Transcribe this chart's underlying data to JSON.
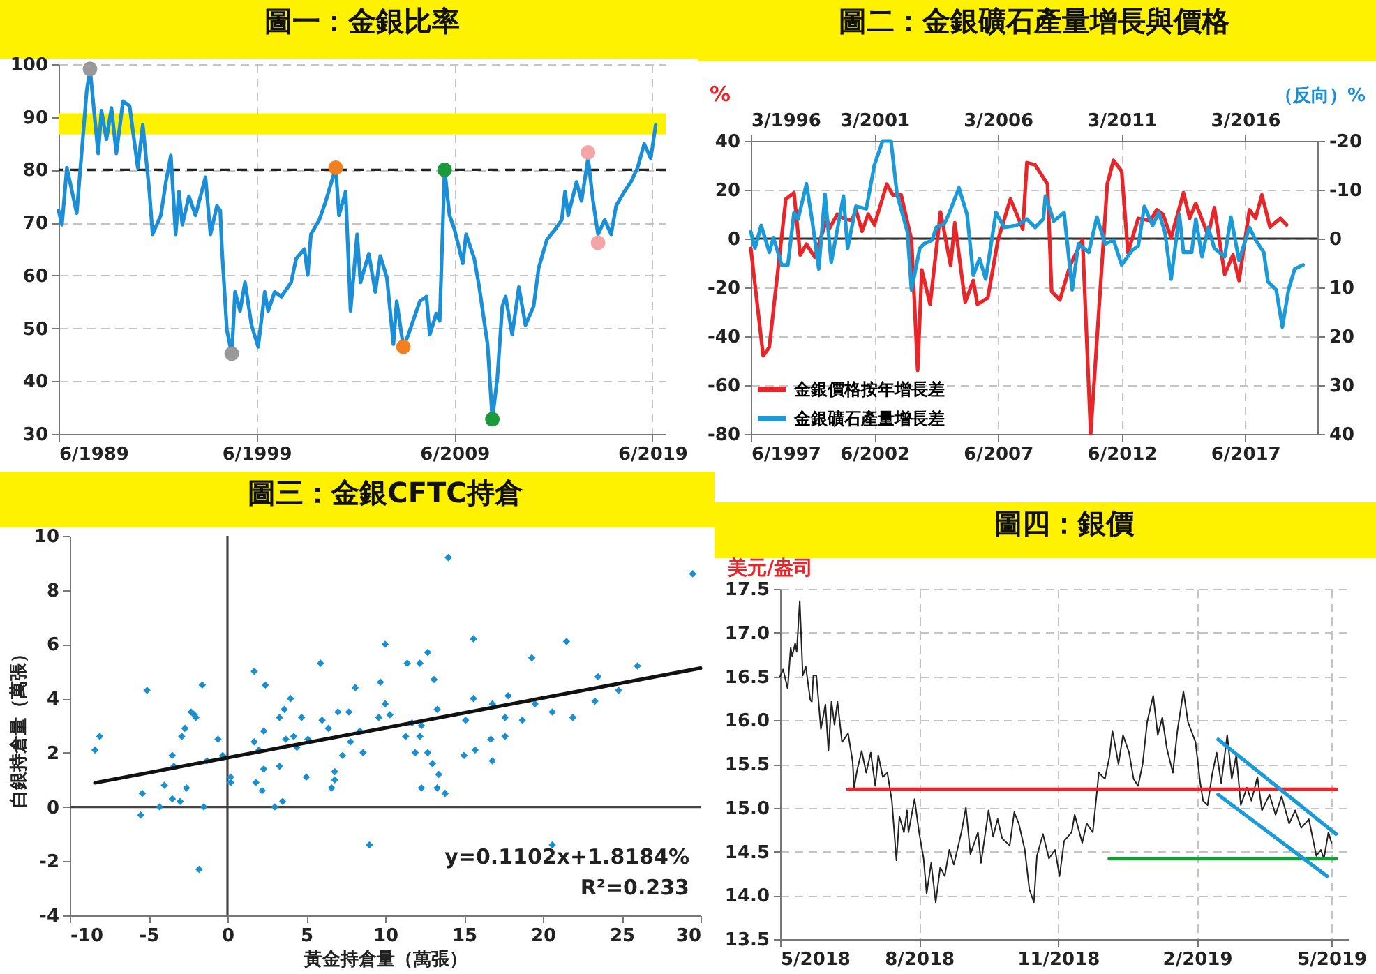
{
  "chart_data": [
    {
      "type": "line",
      "title": "圖一：金銀比率",
      "xlim": [
        "1989-06",
        "2020-02"
      ],
      "xticks": [
        {
          "value": "1989-06",
          "label": "6/1989"
        },
        {
          "value": "1999-06",
          "label": "6/1999"
        },
        {
          "value": "2009-06",
          "label": "6/2009"
        },
        {
          "value": "2019-06",
          "label": "6/2019"
        }
      ],
      "ylim": [
        30,
        100
      ],
      "yticks": [
        30,
        40,
        50,
        60,
        70,
        80,
        90,
        100
      ],
      "grid": true,
      "bands": [
        {
          "axis": "y",
          "from": 86.7,
          "to": 90.7,
          "color": "#fff200"
        }
      ],
      "ref_lines": [
        {
          "axis": "y",
          "value": 80,
          "color": "#222222",
          "line_style": "dashed"
        }
      ],
      "series": [
        {
          "color": "#1a8fd8",
          "x": [
            "1989-06",
            "1989-08",
            "1989-11",
            "1990-05",
            "1990-11",
            "1991-01",
            "1991-06",
            "1991-08",
            "1991-11",
            "1992-02",
            "1992-05",
            "1992-09",
            "1993-01",
            "1993-06",
            "1993-09",
            "1994-01",
            "1994-03",
            "1994-08",
            "1994-11",
            "1995-02",
            "1995-05",
            "1995-07",
            "1995-09",
            "1996-01",
            "1996-05",
            "1996-11",
            "1997-02",
            "1997-06",
            "1997-08",
            "1997-09",
            "1997-12",
            "1998-03",
            "1998-05",
            "1998-08",
            "1998-11",
            "1999-03",
            "1999-07",
            "1999-11",
            "2000-01",
            "2000-05",
            "2000-09",
            "2001-03",
            "2001-06",
            "2001-11",
            "2002-01",
            "2002-03",
            "2002-08",
            "2002-12",
            "2003-06",
            "2003-08",
            "2003-12",
            "2004-03",
            "2004-07",
            "2004-09",
            "2005-02",
            "2005-06",
            "2005-09",
            "2006-01",
            "2006-05",
            "2006-07",
            "2006-11",
            "2007-02",
            "2007-06",
            "2007-09",
            "2008-01",
            "2008-03",
            "2008-07",
            "2008-09",
            "2008-12",
            "2009-03",
            "2009-06",
            "2009-11",
            "2010-01",
            "2010-06",
            "2010-09",
            "2011-02",
            "2011-05",
            "2011-08",
            "2011-11",
            "2012-01",
            "2012-05",
            "2012-09",
            "2013-01",
            "2013-06",
            "2013-09",
            "2014-02",
            "2014-07",
            "2014-11",
            "2015-01",
            "2015-03",
            "2015-08",
            "2015-11",
            "2016-03",
            "2016-06",
            "2016-09",
            "2017-01",
            "2017-05",
            "2017-08",
            "2018-01",
            "2018-05",
            "2018-09",
            "2019-01",
            "2019-05",
            "2019-08"
          ],
          "values": [
            72.3,
            69.6,
            80.4,
            71.8,
            94.9,
            99.1,
            83.1,
            91.2,
            85.8,
            91.7,
            83.1,
            93,
            92.1,
            80.4,
            88.5,
            75.9,
            67.8,
            71.4,
            77.7,
            82.7,
            67.8,
            75.9,
            69.6,
            75,
            71.4,
            78.6,
            67.8,
            73.2,
            72.3,
            65,
            49.7,
            45.2,
            56.9,
            53.3,
            58.7,
            50.6,
            46.5,
            56.9,
            53.3,
            56.9,
            56,
            58.7,
            63.2,
            65,
            60.1,
            67.8,
            70.5,
            74.1,
            80.4,
            71.4,
            75.9,
            53.3,
            67.8,
            58.7,
            64.1,
            56.9,
            63.7,
            59.6,
            47,
            55.1,
            46.5,
            48.8,
            52.4,
            55.1,
            56,
            48.8,
            52.8,
            51.4,
            80,
            71.4,
            68.7,
            62.3,
            67.8,
            63.2,
            57.8,
            47,
            32.8,
            40.6,
            54.2,
            56,
            48.8,
            57.8,
            50.6,
            54.2,
            61.4,
            66.8,
            68.7,
            70.5,
            75.9,
            71.4,
            77.7,
            74.1,
            82.2,
            74.1,
            67.8,
            70.5,
            67.8,
            73.2,
            75.9,
            77.7,
            80.4,
            84.9,
            82.2,
            88.5
          ]
        },
        {
          "type": "scatter",
          "color": "#999999",
          "x": [
            "1991-01",
            "1998-03"
          ],
          "values": [
            99.1,
            45.2
          ]
        },
        {
          "type": "scatter",
          "color": "#f08020",
          "x": [
            "2003-06",
            "2006-11"
          ],
          "values": [
            80.4,
            46.5
          ]
        },
        {
          "type": "scatter",
          "color": "#1a9a3a",
          "x": [
            "2008-12",
            "2011-05"
          ],
          "values": [
            80,
            32.8
          ]
        },
        {
          "type": "scatter",
          "color": "#f4a6a6",
          "x": [
            "2016-03",
            "2016-09"
          ],
          "values": [
            83.3,
            66.2
          ]
        }
      ]
    },
    {
      "type": "line",
      "title": "圖二：金銀礦石產量增長與價格",
      "ylabel": "%",
      "y2label": "（反向）%",
      "xlim": [
        "1997-06",
        "2020-05"
      ],
      "xticks": [
        {
          "value": "1997-06",
          "label": "6/1997"
        },
        {
          "value": "2002-06",
          "label": "6/2002"
        },
        {
          "value": "2007-06",
          "label": "6/2007"
        },
        {
          "value": "2012-06",
          "label": "6/2012"
        },
        {
          "value": "2017-06",
          "label": "6/2017"
        }
      ],
      "x2lim": [
        "1996-03",
        "2019-02"
      ],
      "x2ticks": [
        {
          "value": "1996-03",
          "label": "3/1996"
        },
        {
          "value": "2001-03",
          "label": "3/2001"
        },
        {
          "value": "2006-03",
          "label": "3/2006"
        },
        {
          "value": "2011-03",
          "label": "3/2011"
        },
        {
          "value": "2016-03",
          "label": "3/2016"
        }
      ],
      "ylim": [
        -80,
        40
      ],
      "yticks": [
        -80,
        -60,
        -40,
        -20,
        0,
        20,
        40
      ],
      "y2lim": [
        40,
        -20
      ],
      "y2ticks": [
        -20,
        -10,
        0,
        10,
        20,
        30,
        40
      ],
      "grid": true,
      "legend": "bottom left",
      "ref_lines": [
        {
          "axis": "y",
          "value": 0,
          "color": "#333333"
        }
      ],
      "series": [
        {
          "name": "金銀價格按年增長差",
          "color": "#e8262a",
          "x": [
            "1997-06",
            "1997-12",
            "1998-03",
            "1998-11",
            "1999-03",
            "1999-06",
            "1999-09",
            "2000-01",
            "2000-07",
            "2000-08",
            "2000-12",
            "2001-03",
            "2001-07",
            "2001-09",
            "2001-12",
            "2002-03",
            "2002-06",
            "2002-12",
            "2003-03",
            "2003-07",
            "2003-12",
            "2004-03",
            "2004-05",
            "2004-09",
            "2005-02",
            "2005-07",
            "2005-09",
            "2006-02",
            "2006-06",
            "2006-08",
            "2007-01",
            "2007-06",
            "2007-12",
            "2008-06",
            "2008-08",
            "2008-12",
            "2009-06",
            "2009-08",
            "2009-12",
            "2010-05",
            "2010-11",
            "2011-03",
            "2011-11",
            "2012-02",
            "2012-06",
            "2012-09",
            "2013-02",
            "2013-08",
            "2013-11",
            "2014-02",
            "2014-06",
            "2014-12",
            "2015-03",
            "2015-06",
            "2015-12",
            "2016-03",
            "2016-08",
            "2016-12",
            "2017-03",
            "2017-08",
            "2017-11",
            "2018-02",
            "2018-06",
            "2018-11",
            "2019-02"
          ],
          "values": [
            -4,
            -48,
            -44.5,
            16.2,
            18.8,
            -6.7,
            -2.3,
            -7.6,
            8.3,
            3.9,
            10,
            8.3,
            7.4,
            11.8,
            3,
            10,
            5.6,
            22.3,
            17.9,
            17.9,
            -0.5,
            -54,
            -12.8,
            -26.9,
            10.9,
            -11,
            6.5,
            -26,
            -17.2,
            -26.9,
            -24.3,
            -0.5,
            16.2,
            3.9,
            31.1,
            30.2,
            22.3,
            -21.6,
            -25.1,
            -11,
            -0.5,
            -80,
            22.3,
            32,
            27.6,
            -5.8,
            8.3,
            7.4,
            11.8,
            10,
            0.4,
            18.8,
            8.3,
            14.4,
            1.2,
            12.7,
            -14.6,
            -6.7,
            -17.2,
            11.8,
            8.3,
            17.9,
            4.7,
            8.3,
            5.6
          ]
        },
        {
          "name": "金銀礦石產量增長差",
          "color": "#1a9ad8",
          "axis": "y2",
          "x": [
            "1997-06",
            "1997-08",
            "1997-11",
            "1998-03",
            "1998-05",
            "1998-09",
            "1998-12",
            "1999-03",
            "1999-05",
            "1999-09",
            "1999-12",
            "2000-03",
            "2000-06",
            "2000-09",
            "2001-03",
            "2001-05",
            "2001-09",
            "2002-02",
            "2002-06",
            "2002-10",
            "2003-02",
            "2003-05",
            "2003-10",
            "2003-12",
            "2004-04",
            "2004-06",
            "2004-10",
            "2004-12",
            "2005-04",
            "2005-06",
            "2005-11",
            "2006-03",
            "2006-06",
            "2006-09",
            "2006-12",
            "2007-05",
            "2007-09",
            "2008-03",
            "2008-08",
            "2008-12",
            "2009-04",
            "2009-05",
            "2009-09",
            "2010-02",
            "2010-06",
            "2010-09",
            "2011-02",
            "2011-06",
            "2011-10",
            "2012-02",
            "2012-06",
            "2012-11",
            "2013-02",
            "2013-05",
            "2013-09",
            "2013-12",
            "2014-03",
            "2014-06",
            "2014-10",
            "2014-12",
            "2015-04",
            "2015-06",
            "2015-09",
            "2015-12",
            "2016-03",
            "2016-08",
            "2016-11",
            "2017-03",
            "2017-08",
            "2017-11",
            "2018-03",
            "2018-05",
            "2018-09",
            "2018-12",
            "2019-03",
            "2019-06",
            "2019-10"
          ],
          "values": [
            -1.4,
            2,
            -2.7,
            2.8,
            -0.2,
            5.4,
            5.4,
            -5.3,
            -4,
            -11.2,
            -3.1,
            6.2,
            -9.1,
            4.9,
            -8.7,
            2,
            -6.6,
            -6.1,
            -15.1,
            -20,
            -20,
            -9.1,
            -1.4,
            10.5,
            2,
            1.1,
            0.3,
            -2.3,
            -3.1,
            -4.9,
            -10.4,
            -4.9,
            7.5,
            4.1,
            8.3,
            -5.3,
            -2.3,
            -2.7,
            -4,
            -2.3,
            -4,
            -8.7,
            -3.6,
            -5.3,
            10.5,
            1.1,
            2.8,
            -4.4,
            1.1,
            0.3,
            5.4,
            2.4,
            1.5,
            -6.6,
            -2.7,
            -5.3,
            -1.4,
            8.3,
            -4.9,
            2.8,
            2.8,
            -4,
            3.7,
            -2.3,
            2,
            3.7,
            -4.4,
            4.5,
            -2.3,
            0.3,
            2.8,
            8.8,
            10.5,
            18.1,
            10.5,
            6.2,
            5.4
          ]
        }
      ]
    },
    {
      "type": "scatter",
      "title": "圖三：金銀CFTC持倉",
      "xlabel": "黃金持倉量（萬張）",
      "ylabel": "白銀持倉量（萬張）",
      "xlim": [
        -10,
        30
      ],
      "xticks": [
        -10,
        -5,
        0,
        5,
        10,
        15,
        20,
        25,
        30
      ],
      "ylim": [
        -4,
        10
      ],
      "yticks": [
        -4,
        -2,
        0,
        2,
        4,
        6,
        8,
        10
      ],
      "ref_lines": [
        {
          "axis": "x",
          "value": 0,
          "color": "#444444"
        },
        {
          "axis": "y",
          "value": 0,
          "color": "#444444"
        }
      ],
      "annotations": [
        "y=0.1102x+1.8184%",
        "R²=0.233"
      ],
      "series": [
        {
          "color": "#1a8fd0",
          "marker": "diamond",
          "x": [
            -8.4,
            -8.1,
            -5.5,
            -5.4,
            -5.1,
            -4.3,
            -4.0,
            -3.5,
            -3.4,
            -3.5,
            -3.0,
            -2.9,
            -2.7,
            -2.6,
            -2.3,
            -2.1,
            -2.0,
            -1.8,
            -1.6,
            -1.5,
            -1.3,
            -0.6,
            -0.3,
            0.2,
            0.2,
            1.7,
            1.7,
            1.8,
            2.0,
            2.2,
            2.3,
            2.3,
            2.4,
            3.0,
            3.3,
            3.3,
            3.5,
            3.6,
            3.7,
            4.0,
            4.2,
            4.4,
            4.7,
            5.0,
            5.1,
            5.9,
            6.0,
            6.4,
            6.6,
            6.8,
            6.8,
            7.0,
            7.3,
            7.7,
            7.8,
            8.1,
            8.4,
            8.6,
            9.0,
            9.6,
            9.7,
            10.0,
            10.0,
            10.3,
            11.3,
            11.4,
            11.7,
            11.9,
            12.2,
            12.2,
            12.3,
            12.3,
            12.7,
            12.7,
            13.0,
            13.1,
            13.3,
            13.3,
            13.4,
            13.8,
            14.0,
            15.1,
            15.0,
            15.6,
            15.6,
            15.7,
            16.7,
            16.8,
            16.8,
            17.6,
            17.6,
            17.8,
            18.7,
            19.3,
            19.5,
            20.6,
            20.6,
            21.5,
            21.9,
            23.3,
            23.5,
            24.8,
            26.0,
            29.5
          ],
          "values": [
            2.1,
            2.6,
            -0.3,
            0.5,
            4.3,
            0.0,
            0.8,
            1.9,
            1.5,
            0.3,
            0.2,
            2.6,
            2.9,
            0.7,
            3.5,
            3.4,
            3.3,
            -2.3,
            4.5,
            0.0,
            1.7,
            2.5,
            1.9,
            0.9,
            1.1,
            5.0,
            2.4,
            0.9,
            2.1,
            0.6,
            2.8,
            1.4,
            4.5,
            0.0,
            3.3,
            1.5,
            0.2,
            3.6,
            2.5,
            4.0,
            2.6,
            2.2,
            3.3,
            1.1,
            2.5,
            5.3,
            3.2,
            2.9,
            0.7,
            1.3,
            1.0,
            3.5,
            1.9,
            3.5,
            2.4,
            4.4,
            2.8,
            2.0,
            -1.4,
            3.3,
            4.6,
            6.0,
            3.8,
            3.4,
            2.6,
            5.3,
            3.1,
            2.0,
            5.3,
            2.6,
            3.0,
            0.7,
            5.7,
            2.0,
            1.6,
            4.7,
            3.6,
            0.7,
            1.2,
            0.5,
            9.2,
            3.2,
            1.9,
            4.0,
            6.2,
            2.1,
            2.5,
            1.7,
            3.8,
            3.3,
            2.6,
            4.1,
            3.2,
            5.5,
            3.8,
            -1.4,
            3.5,
            6.1,
            3.3,
            3.9,
            4.8,
            4.3,
            5.2,
            8.6
          ]
        },
        {
          "type": "line",
          "color": "#111111",
          "x": [
            -8.4,
            30
          ],
          "values": [
            0.89,
            5.12
          ]
        }
      ]
    },
    {
      "type": "line",
      "title": "圖四：銀價",
      "ylabel": "美元/盎司",
      "xlim": [
        "2018-05-01",
        "2019-05-12"
      ],
      "xticks": [
        {
          "value": "2018-05-01",
          "label": "5/2018"
        },
        {
          "value": "2018-08-01",
          "label": "8/2018"
        },
        {
          "value": "2018-11-01",
          "label": "11/2018"
        },
        {
          "value": "2019-02-01",
          "label": "2/2019"
        },
        {
          "value": "2019-05-01",
          "label": "5/2019"
        }
      ],
      "ylim": [
        13.5,
        17.5
      ],
      "yticks": [
        13.5,
        {
          "value": 14,
          "label": "14.0"
        },
        14.5,
        {
          "value": 15,
          "label": "15.0"
        },
        15.5,
        {
          "value": 16,
          "label": "16.0"
        },
        16.5,
        {
          "value": 17,
          "label": "17.0"
        },
        17.5
      ],
      "grid": true,
      "series": [
        {
          "color": "#222222",
          "x": [
            "2018-05-01",
            "2018-05-03",
            "2018-05-06",
            "2018-05-08",
            "2018-05-09",
            "2018-05-11",
            "2018-05-12",
            "2018-05-14",
            "2018-05-16",
            "2018-05-18",
            "2018-05-21",
            "2018-05-22",
            "2018-05-23",
            "2018-05-25",
            "2018-05-28",
            "2018-05-31",
            "2018-06-02",
            "2018-06-04",
            "2018-06-06",
            "2018-06-08",
            "2018-06-11",
            "2018-06-15",
            "2018-06-18",
            "2018-06-19",
            "2018-06-21",
            "2018-06-24",
            "2018-06-27",
            "2018-06-30",
            "2018-07-03",
            "2018-07-05",
            "2018-07-08",
            "2018-07-11",
            "2018-07-14",
            "2018-07-17",
            "2018-07-19",
            "2018-07-22",
            "2018-07-24",
            "2018-07-25",
            "2018-07-29",
            "2018-08-01",
            "2018-08-04",
            "2018-08-06",
            "2018-08-09",
            "2018-08-12",
            "2018-08-15",
            "2018-08-18",
            "2018-08-21",
            "2018-08-24",
            "2018-08-27",
            "2018-08-29",
            "2018-09-01",
            "2018-09-04",
            "2018-09-09",
            "2018-09-11",
            "2018-09-16",
            "2018-09-19",
            "2018-09-22",
            "2018-09-25",
            "2018-09-30",
            "2018-10-03",
            "2018-10-06",
            "2018-10-10",
            "2018-10-13",
            "2018-10-16",
            "2018-10-18",
            "2018-10-22",
            "2018-10-26",
            "2018-10-30",
            "2018-11-02",
            "2018-11-05",
            "2018-11-10",
            "2018-11-12",
            "2018-11-17",
            "2018-11-20",
            "2018-11-24",
            "2018-11-28",
            "2018-12-02",
            "2018-12-05",
            "2018-12-07",
            "2018-12-11",
            "2018-12-14",
            "2018-12-18",
            "2018-12-21",
            "2018-12-24",
            "2018-12-27",
            "2018-12-30",
            "2019-01-03",
            "2019-01-06",
            "2019-01-09",
            "2019-01-12",
            "2019-01-16",
            "2019-01-19",
            "2019-01-23",
            "2019-01-26",
            "2019-01-31",
            "2019-02-03",
            "2019-02-05",
            "2019-02-08",
            "2019-02-11",
            "2019-02-14",
            "2019-02-17",
            "2019-02-21",
            "2019-02-24",
            "2019-02-27",
            "2019-03-02",
            "2019-03-06",
            "2019-03-09",
            "2019-03-13",
            "2019-03-16",
            "2019-03-21",
            "2019-03-25",
            "2019-03-29",
            "2019-04-03",
            "2019-04-07",
            "2019-04-11",
            "2019-04-16",
            "2019-04-19",
            "2019-04-21",
            "2019-04-24",
            "2019-04-26",
            "2019-04-29",
            "2019-05-01"
          ],
          "values": [
            16.5,
            16.58,
            16.36,
            16.83,
            16.73,
            16.88,
            16.78,
            17.36,
            16.51,
            16.61,
            16.23,
            16.21,
            16.51,
            16.51,
            15.9,
            16.18,
            15.65,
            16.21,
            15.95,
            16.21,
            15.75,
            15.85,
            15.53,
            15.23,
            15.43,
            15.65,
            15.4,
            15.63,
            15.25,
            15.6,
            15.35,
            15.4,
            15.08,
            14.4,
            14.9,
            14.72,
            14.97,
            14.72,
            15.1,
            14.72,
            14.42,
            14.02,
            14.37,
            13.92,
            14.32,
            14.22,
            14.52,
            14.35,
            14.57,
            14.72,
            15.0,
            14.47,
            14.72,
            14.37,
            14.97,
            14.67,
            14.87,
            14.65,
            14.57,
            14.95,
            14.82,
            14.52,
            14.07,
            13.92,
            14.45,
            14.7,
            14.42,
            14.52,
            14.22,
            14.62,
            14.72,
            14.92,
            14.6,
            14.82,
            14.72,
            15.4,
            15.33,
            15.58,
            15.88,
            15.5,
            15.83,
            15.63,
            15.33,
            15.25,
            15.5,
            15.98,
            16.28,
            15.83,
            16.03,
            15.68,
            15.4,
            15.88,
            16.33,
            15.98,
            15.75,
            15.3,
            15.08,
            15.03,
            15.38,
            15.63,
            15.28,
            15.83,
            15.33,
            15.6,
            15.03,
            15.23,
            15.08,
            15.35,
            14.97,
            15.15,
            14.92,
            15.13,
            14.82,
            14.97,
            14.77,
            14.87,
            14.62,
            14.45,
            14.52,
            14.42,
            14.72,
            14.6
          ]
        },
        {
          "color": "#e8262a",
          "x": [
            "2018-06-15",
            "2019-05-04"
          ],
          "values": [
            15.21,
            15.21
          ]
        },
        {
          "color": "#1a9a3a",
          "x": [
            "2018-12-05",
            "2019-05-04"
          ],
          "values": [
            14.42,
            14.42
          ]
        },
        {
          "color": "#1a9ad8",
          "x": [
            "2019-02-15",
            "2019-05-04"
          ],
          "values": [
            15.78,
            14.7
          ]
        },
        {
          "color": "#1a9ad8",
          "x": [
            "2019-02-15",
            "2019-04-28"
          ],
          "values": [
            15.15,
            14.22
          ]
        }
      ]
    }
  ]
}
